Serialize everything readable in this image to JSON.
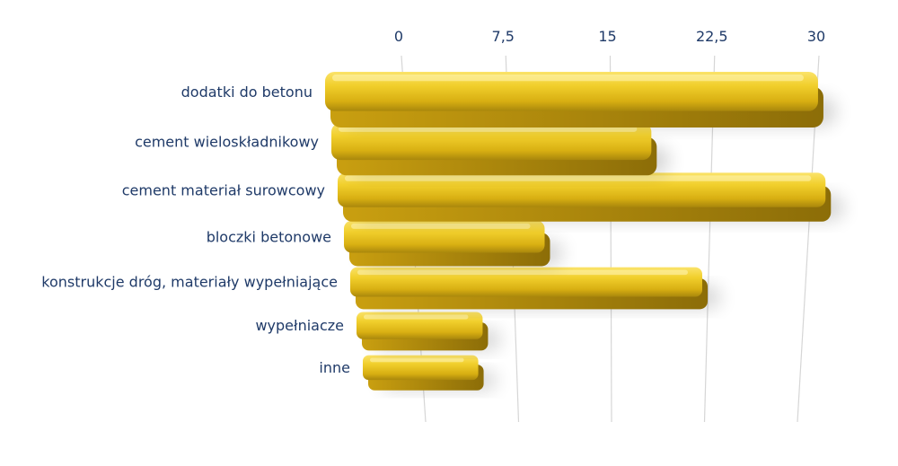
{
  "chart_data": {
    "type": "bar",
    "orientation": "horizontal",
    "style": "3d",
    "categories": [
      "dodatki do betonu",
      "cement wieloskładnikowy",
      "cement materiał surowcowy",
      "bloczki betonowe",
      "konstrukcje dróg, materiały wypełniające",
      "wypełniacze",
      "inne"
    ],
    "values": [
      30,
      18,
      31,
      10,
      22,
      5,
      4.5
    ],
    "xlim": [
      0,
      30
    ],
    "ticks": [
      "0",
      "7,5",
      "15",
      "22,5",
      "30"
    ],
    "tick_values": [
      0,
      7.5,
      15,
      22.5,
      30
    ],
    "grid": true,
    "legend": "none",
    "bar_color": "#e8c21d",
    "bar_shadow_color": "#9a7a10",
    "label_color": "#1f3a68",
    "grid_color": "#d6d6d6"
  }
}
